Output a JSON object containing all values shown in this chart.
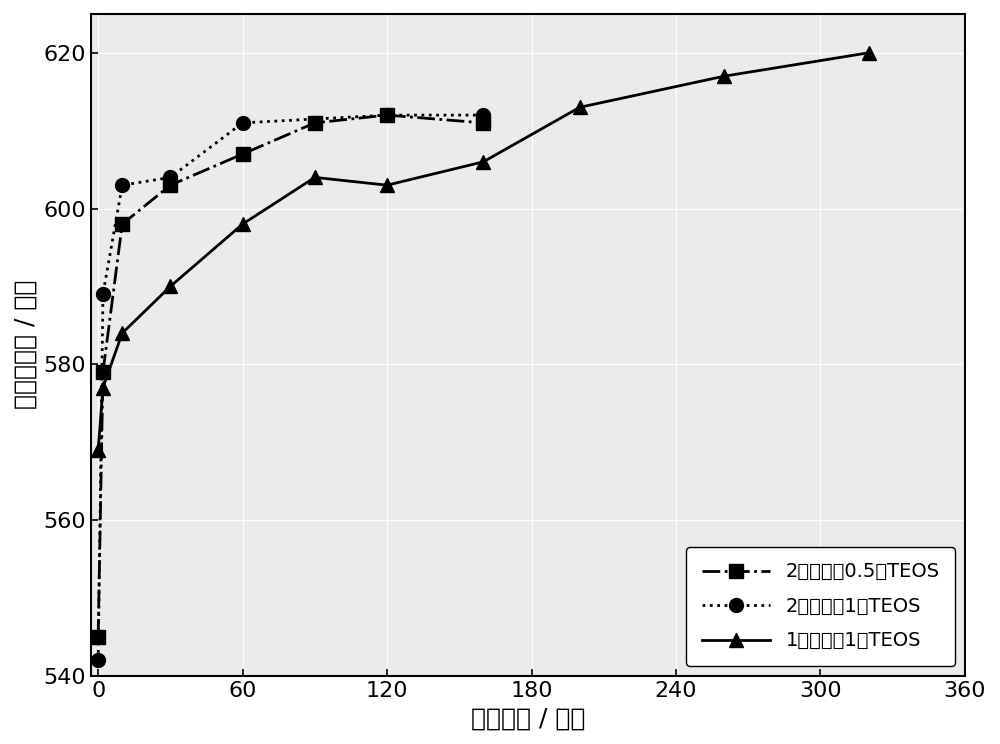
{
  "series": [
    {
      "label": "2倍氨水，0.5倍TEOS",
      "x": [
        0,
        2,
        10,
        30,
        60,
        90,
        120,
        160
      ],
      "y": [
        545,
        579,
        598,
        603,
        607,
        611,
        612,
        611
      ],
      "linestyle": "-.",
      "marker": "s",
      "color": "#000000"
    },
    {
      "label": "2倍氨水，1倍TEOS",
      "x": [
        0,
        2,
        10,
        30,
        60,
        120,
        160
      ],
      "y": [
        542,
        589,
        603,
        604,
        611,
        612,
        612
      ],
      "linestyle": ":",
      "marker": "o",
      "color": "#000000"
    },
    {
      "label": "1倍氨水，1倍TEOS",
      "x": [
        0,
        2,
        10,
        30,
        60,
        90,
        120,
        160,
        200,
        260,
        320
      ],
      "y": [
        569,
        577,
        584,
        590,
        598,
        604,
        603,
        606,
        613,
        617,
        620
      ],
      "linestyle": "-",
      "marker": "^",
      "color": "#000000"
    }
  ],
  "xlabel": "回流时间 / 分钟",
  "ylabel": "荧光峰位置 / 纳米",
  "xlim": [
    -3,
    360
  ],
  "ylim": [
    540,
    625
  ],
  "xticks": [
    0,
    60,
    120,
    180,
    240,
    300,
    360
  ],
  "yticks": [
    540,
    560,
    580,
    600,
    620
  ],
  "background_color": "#ffffff",
  "plot_bg_color": "#ebebeb",
  "legend_loc": "lower right",
  "font_size": 18,
  "marker_size": 10,
  "linewidth": 2.0
}
